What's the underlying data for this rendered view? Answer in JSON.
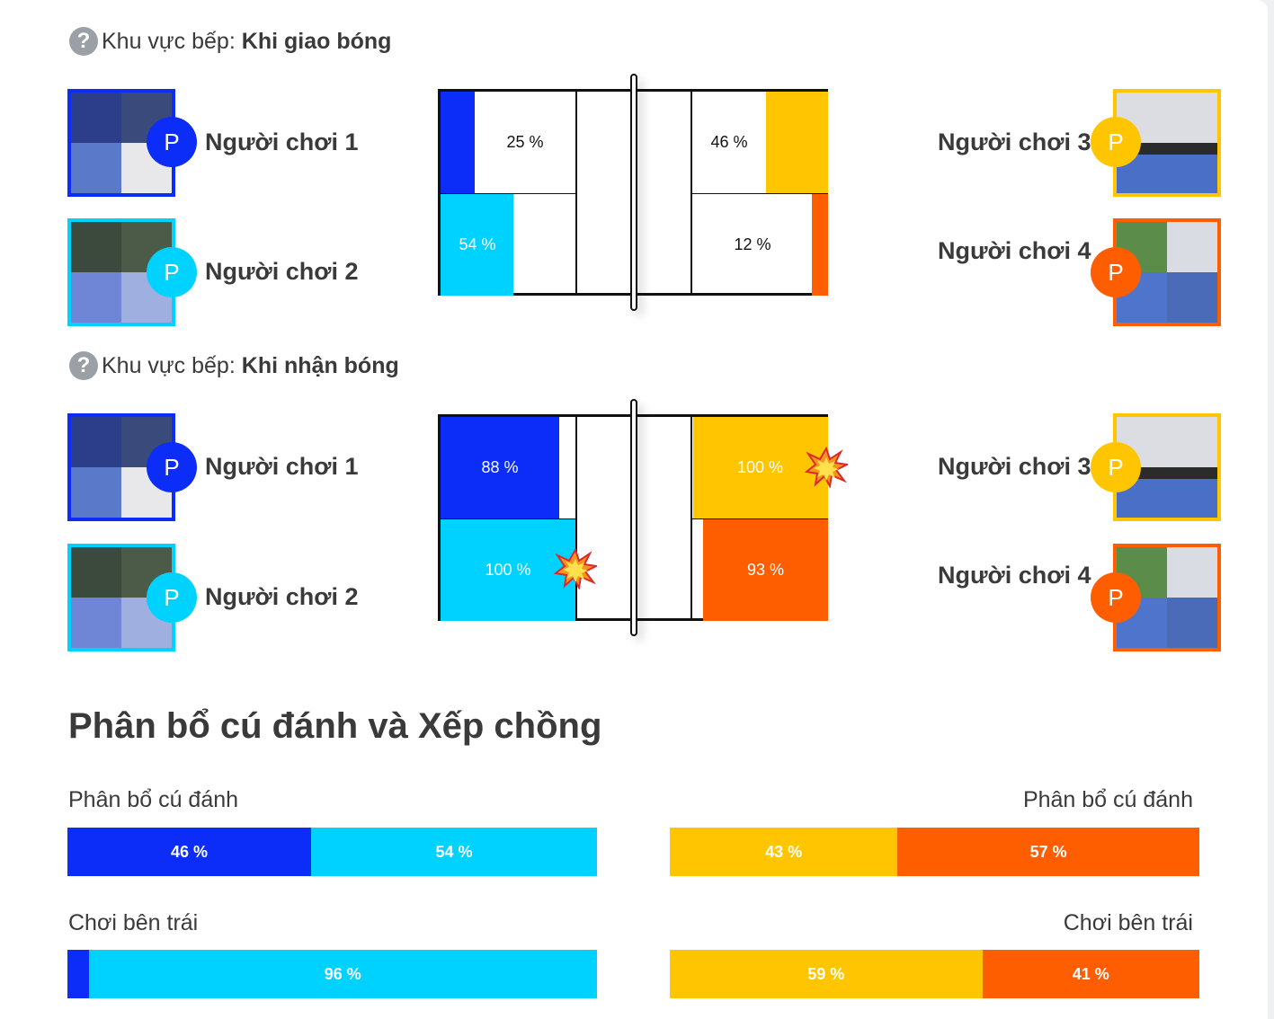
{
  "colors": {
    "p1": "#0b2df7",
    "p2": "#00d2ff",
    "p3": "#ffc600",
    "p4": "#ff5e00"
  },
  "serve_section": {
    "prefix": "Khu vực bếp:",
    "title": "Khi giao bóng"
  },
  "receive_section": {
    "prefix": "Khu vực bếp:",
    "title": "Khi nhận bóng"
  },
  "players": {
    "p1": "Người chơi 1",
    "p2": "Người chơi 2",
    "p3": "Người chơi 3",
    "p4": "Người chơi 4",
    "badge": "P"
  },
  "serve_court": {
    "p1": {
      "value": 25,
      "label": "25 %"
    },
    "p2": {
      "value": 54,
      "label": "54 %"
    },
    "p3": {
      "value": 46,
      "label": "46 %"
    },
    "p4": {
      "value": 12,
      "label": "12 %"
    }
  },
  "receive_court": {
    "p1": {
      "value": 88,
      "label": "88 %"
    },
    "p2": {
      "value": 100,
      "label": "100 %"
    },
    "p3": {
      "value": 100,
      "label": "100 %"
    },
    "p4": {
      "value": 93,
      "label": "93 %"
    }
  },
  "distribution": {
    "title": "Phân bổ cú đánh và Xếp chồng",
    "left": {
      "shot_label": "Phân bổ cú đánh",
      "shot": [
        {
          "value": 46,
          "label": "46 %"
        },
        {
          "value": 54,
          "label": "54 %"
        }
      ],
      "left_label": "Chơi bên trái",
      "left_side": [
        {
          "value": 4,
          "label": ""
        },
        {
          "value": 96,
          "label": "96 %"
        }
      ]
    },
    "right": {
      "shot_label": "Phân bổ cú đánh",
      "shot": [
        {
          "value": 43,
          "label": "43 %"
        },
        {
          "value": 57,
          "label": "57 %"
        }
      ],
      "left_label": "Chơi bên trái",
      "left_side": [
        {
          "value": 59,
          "label": "59 %"
        },
        {
          "value": 41,
          "label": "41 %"
        }
      ]
    }
  }
}
